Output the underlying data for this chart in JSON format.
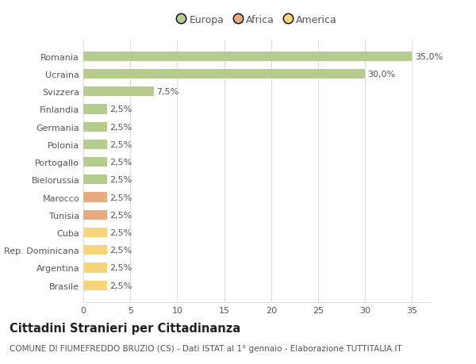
{
  "countries": [
    "Romania",
    "Ucraina",
    "Svizzera",
    "Finlandia",
    "Germania",
    "Polonia",
    "Portogallo",
    "Bielorussia",
    "Marocco",
    "Tunisia",
    "Cuba",
    "Rep. Dominicana",
    "Argentina",
    "Brasile"
  ],
  "values": [
    35.0,
    30.0,
    7.5,
    2.5,
    2.5,
    2.5,
    2.5,
    2.5,
    2.5,
    2.5,
    2.5,
    2.5,
    2.5,
    2.5
  ],
  "labels": [
    "35,0%",
    "30,0%",
    "7,5%",
    "2,5%",
    "2,5%",
    "2,5%",
    "2,5%",
    "2,5%",
    "2,5%",
    "2,5%",
    "2,5%",
    "2,5%",
    "2,5%",
    "2,5%"
  ],
  "categories": [
    "Europa",
    "Europa",
    "Europa",
    "Europa",
    "Europa",
    "Europa",
    "Europa",
    "Europa",
    "Africa",
    "Africa",
    "America",
    "America",
    "America",
    "America"
  ],
  "colors": {
    "Europa": "#b5cc8e",
    "Africa": "#e8aa80",
    "America": "#f5d47a"
  },
  "xlim": [
    0,
    37
  ],
  "xticks": [
    0,
    5,
    10,
    15,
    20,
    25,
    30,
    35
  ],
  "title": "Cittadini Stranieri per Cittadinanza",
  "subtitle": "COMUNE DI FIUMEFREDDO BRUZIO (CS) - Dati ISTAT al 1° gennaio - Elaborazione TUTTITALIA.IT",
  "background_color": "#ffffff",
  "grid_color": "#dddddd",
  "bar_height": 0.55,
  "label_fontsize": 8,
  "title_fontsize": 10.5,
  "subtitle_fontsize": 7.5,
  "ytick_fontsize": 8,
  "xtick_fontsize": 8,
  "legend_fontsize": 9,
  "text_color": "#555555",
  "title_color": "#222222"
}
